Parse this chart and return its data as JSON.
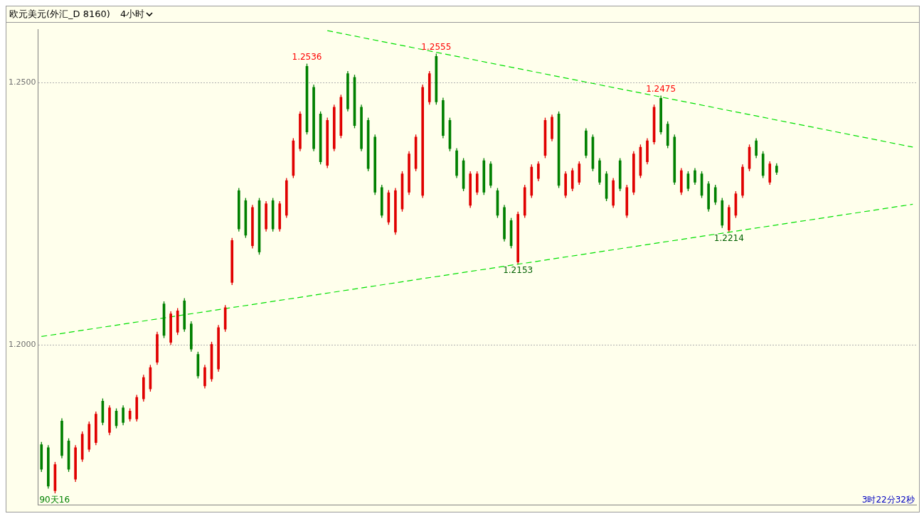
{
  "chart_data": {
    "type": "candlestick",
    "title": "欧元美元(外汇_D 8160)",
    "subtitle": "4小时",
    "categories": [
      null,
      null,
      null,
      null,
      null,
      null,
      null,
      null,
      null,
      null,
      null,
      null,
      null,
      null,
      null,
      null,
      null,
      null,
      null,
      null,
      null,
      null,
      null,
      null,
      null,
      null,
      null,
      null,
      null,
      null,
      null,
      null,
      null,
      null,
      null,
      null,
      null,
      null,
      null,
      null,
      null,
      null,
      null,
      null,
      null,
      null,
      null,
      null,
      null,
      null,
      null,
      null,
      null,
      null,
      null,
      null,
      null,
      null,
      null,
      null,
      null,
      null,
      null,
      null,
      null,
      null,
      null,
      null,
      null,
      null,
      null,
      null,
      null,
      null,
      null,
      null,
      null,
      null,
      null,
      null,
      null,
      null,
      null,
      null,
      null,
      null,
      null,
      null,
      null,
      null,
      null,
      null,
      null,
      null,
      null,
      null,
      null,
      null,
      null,
      null,
      null,
      null,
      null,
      null,
      null,
      null,
      null,
      null,
      null,
      null,
      null,
      null,
      null,
      null,
      null,
      null,
      null,
      null,
      null,
      null,
      null,
      null,
      null,
      null,
      null,
      null,
      null,
      null,
      null
    ],
    "ohlc": [
      [
        1.181,
        1.1815,
        1.1758,
        1.1763
      ],
      [
        1.1804,
        1.1809,
        1.1726,
        1.1731
      ],
      [
        1.1722,
        1.1777,
        1.1717,
        1.1772
      ],
      [
        1.1855,
        1.186,
        1.1784,
        1.1789
      ],
      [
        1.1817,
        1.1822,
        1.1758,
        1.1763
      ],
      [
        1.1744,
        1.1809,
        1.1739,
        1.1804
      ],
      [
        1.1782,
        1.1835,
        1.1777,
        1.183
      ],
      [
        1.1801,
        1.1854,
        1.1796,
        1.1849
      ],
      [
        1.1814,
        1.1873,
        1.1809,
        1.1868
      ],
      [
        1.1893,
        1.1898,
        1.1847,
        1.1852
      ],
      [
        1.1833,
        1.1885,
        1.1828,
        1.188
      ],
      [
        1.1874,
        1.1879,
        1.1841,
        1.1846
      ],
      [
        1.188,
        1.1885,
        1.1847,
        1.1852
      ],
      [
        1.1859,
        1.1879,
        1.1854,
        1.1874
      ],
      [
        1.1859,
        1.1905,
        1.1854,
        1.19
      ],
      [
        1.1897,
        1.1943,
        1.1892,
        1.1938
      ],
      [
        1.1916,
        1.1962,
        1.1911,
        1.1957
      ],
      [
        1.1967,
        1.2025,
        1.1962,
        1.202
      ],
      [
        1.2078,
        1.2083,
        1.2013,
        1.2018
      ],
      [
        1.2005,
        1.2064,
        1.2,
        1.2059
      ],
      [
        1.2024,
        1.207,
        1.2019,
        1.2065
      ],
      [
        1.2084,
        1.2089,
        1.2025,
        1.203
      ],
      [
        1.204,
        1.2045,
        1.1987,
        1.1992
      ],
      [
        1.1982,
        1.1987,
        1.1936,
        1.1941
      ],
      [
        1.1922,
        1.1962,
        1.1917,
        1.1957
      ],
      [
        1.1935,
        1.2006,
        1.193,
        1.2001
      ],
      [
        1.1954,
        1.2038,
        1.1949,
        1.2033
      ],
      [
        1.203,
        1.2076,
        1.2025,
        1.2071
      ],
      [
        1.2119,
        1.2204,
        1.2114,
        1.2199
      ],
      [
        1.2294,
        1.2299,
        1.2216,
        1.2221
      ],
      [
        1.2275,
        1.228,
        1.2204,
        1.2209
      ],
      [
        1.2189,
        1.2267,
        1.2184,
        1.2262
      ],
      [
        1.2275,
        1.228,
        1.2172,
        1.2177
      ],
      [
        1.2221,
        1.2274,
        1.2216,
        1.2269
      ],
      [
        1.2275,
        1.228,
        1.2216,
        1.2221
      ],
      [
        1.2221,
        1.2274,
        1.2216,
        1.2269
      ],
      [
        1.2247,
        1.2318,
        1.2242,
        1.2313
      ],
      [
        1.2323,
        1.2394,
        1.2318,
        1.2389
      ],
      [
        1.2374,
        1.2445,
        1.2369,
        1.244
      ],
      [
        1.2531,
        1.2536,
        1.2401,
        1.2406
      ],
      [
        1.2491,
        1.2496,
        1.2369,
        1.2374
      ],
      [
        1.244,
        1.2445,
        1.2344,
        1.2349
      ],
      [
        1.2342,
        1.2433,
        1.2337,
        1.2428
      ],
      [
        1.2374,
        1.2458,
        1.2369,
        1.2453
      ],
      [
        1.2399,
        1.2477,
        1.2394,
        1.2472
      ],
      [
        1.2517,
        1.2522,
        1.2445,
        1.245
      ],
      [
        1.251,
        1.2515,
        1.2413,
        1.2418
      ],
      [
        1.2453,
        1.2458,
        1.2369,
        1.2374
      ],
      [
        1.2428,
        1.2433,
        1.2331,
        1.2336
      ],
      [
        1.2396,
        1.2401,
        1.2286,
        1.2291
      ],
      [
        1.23,
        1.2305,
        1.2242,
        1.2247
      ],
      [
        1.2234,
        1.2295,
        1.2229,
        1.229
      ],
      [
        1.2215,
        1.2299,
        1.221,
        1.2294
      ],
      [
        1.2259,
        1.2331,
        1.2254,
        1.2326
      ],
      [
        1.2291,
        1.2369,
        1.2286,
        1.2364
      ],
      [
        1.2336,
        1.2401,
        1.2331,
        1.2396
      ],
      [
        1.2285,
        1.2496,
        1.228,
        1.2491
      ],
      [
        1.2463,
        1.2522,
        1.2458,
        1.2517
      ],
      [
        1.255,
        1.2555,
        1.2458,
        1.2463
      ],
      [
        1.2466,
        1.2471,
        1.2394,
        1.2399
      ],
      [
        1.2428,
        1.2433,
        1.2369,
        1.2374
      ],
      [
        1.237,
        1.2375,
        1.2318,
        1.2323
      ],
      [
        1.2351,
        1.2356,
        1.2293,
        1.2298
      ],
      [
        1.2266,
        1.2331,
        1.2261,
        1.2326
      ],
      [
        1.2291,
        1.2331,
        1.2286,
        1.2326
      ],
      [
        1.2351,
        1.2356,
        1.2286,
        1.2291
      ],
      [
        1.2345,
        1.235,
        1.2299,
        1.2304
      ],
      [
        1.2294,
        1.2299,
        1.2242,
        1.2247
      ],
      [
        1.2262,
        1.2267,
        1.2197,
        1.2202
      ],
      [
        1.2237,
        1.2242,
        1.2184,
        1.2189
      ],
      [
        1.2158,
        1.2254,
        1.2153,
        1.2249
      ],
      [
        1.2247,
        1.2305,
        1.2242,
        1.23
      ],
      [
        1.2285,
        1.2344,
        1.228,
        1.2339
      ],
      [
        1.2317,
        1.235,
        1.2312,
        1.2345
      ],
      [
        1.2361,
        1.2433,
        1.2356,
        1.2428
      ],
      [
        1.2393,
        1.2439,
        1.2388,
        1.2434
      ],
      [
        1.244,
        1.2445,
        1.2299,
        1.2304
      ],
      [
        1.2285,
        1.2331,
        1.228,
        1.2326
      ],
      [
        1.2298,
        1.2337,
        1.2293,
        1.2332
      ],
      [
        1.231,
        1.235,
        1.2305,
        1.2345
      ],
      [
        1.2408,
        1.2413,
        1.2356,
        1.2361
      ],
      [
        1.2396,
        1.2401,
        1.2331,
        1.2336
      ],
      [
        1.2351,
        1.2356,
        1.2305,
        1.231
      ],
      [
        1.2326,
        1.2331,
        1.2274,
        1.2279
      ],
      [
        1.2266,
        1.2318,
        1.2261,
        1.2313
      ],
      [
        1.2351,
        1.2356,
        1.2293,
        1.2298
      ],
      [
        1.2247,
        1.2305,
        1.2242,
        1.23
      ],
      [
        1.2291,
        1.2369,
        1.2286,
        1.2364
      ],
      [
        1.2323,
        1.2382,
        1.2318,
        1.2377
      ],
      [
        1.2349,
        1.2394,
        1.2344,
        1.2389
      ],
      [
        1.2387,
        1.2458,
        1.2382,
        1.2453
      ],
      [
        1.247,
        1.2475,
        1.2401,
        1.2406
      ],
      [
        1.2421,
        1.2426,
        1.2375,
        1.238
      ],
      [
        1.2396,
        1.2401,
        1.2305,
        1.231
      ],
      [
        1.2291,
        1.2337,
        1.2286,
        1.2332
      ],
      [
        1.2326,
        1.2331,
        1.2293,
        1.2298
      ],
      [
        1.2332,
        1.2337,
        1.2305,
        1.231
      ],
      [
        1.2326,
        1.2331,
        1.228,
        1.2285
      ],
      [
        1.2307,
        1.2312,
        1.2254,
        1.2259
      ],
      [
        1.23,
        1.2305,
        1.2267,
        1.2272
      ],
      [
        1.2275,
        1.228,
        1.2223,
        1.2228
      ],
      [
        1.2219,
        1.2267,
        1.2214,
        1.2262
      ],
      [
        1.2247,
        1.2293,
        1.2242,
        1.2288
      ],
      [
        1.2285,
        1.2344,
        1.228,
        1.2339
      ],
      [
        1.2336,
        1.2382,
        1.2331,
        1.2377
      ],
      [
        1.2389,
        1.2394,
        1.2356,
        1.2361
      ],
      [
        1.2364,
        1.2369,
        1.2318,
        1.2323
      ],
      [
        1.231,
        1.235,
        1.2305,
        1.2345
      ],
      [
        1.2341,
        1.2346,
        1.2324,
        1.2329
      ],
      null,
      null,
      null,
      null,
      null,
      null,
      null,
      null,
      null,
      null,
      null,
      null,
      null,
      null,
      null,
      null,
      null,
      null,
      null,
      null
    ],
    "colors": [
      "#008000",
      "#008000",
      "#e00000",
      "#008000",
      "#008000",
      "#e00000",
      "#e00000",
      "#e00000",
      "#e00000",
      "#008000",
      "#e00000",
      "#008000",
      "#008000",
      "#e00000",
      "#e00000",
      "#e00000",
      "#e00000",
      "#e00000",
      "#008000",
      "#e00000",
      "#e00000",
      "#008000",
      "#008000",
      "#008000",
      "#e00000",
      "#e00000",
      "#e00000",
      "#e00000",
      "#e00000",
      "#008000",
      "#008000",
      "#e00000",
      "#008000",
      "#e00000",
      "#008000",
      "#e00000",
      "#e00000",
      "#e00000",
      "#e00000",
      "#008000",
      "#008000",
      "#008000",
      "#e00000",
      "#e00000",
      "#e00000",
      "#008000",
      "#008000",
      "#008000",
      "#008000",
      "#008000",
      "#008000",
      "#e00000",
      "#e00000",
      "#e00000",
      "#e00000",
      "#e00000",
      "#e00000",
      "#e00000",
      "#008000",
      "#008000",
      "#008000",
      "#008000",
      "#008000",
      "#e00000",
      "#e00000",
      "#008000",
      "#008000",
      "#008000",
      "#008000",
      "#008000",
      "#e00000",
      "#e00000",
      "#e00000",
      "#e00000",
      "#e00000",
      "#e00000",
      "#008000",
      "#e00000",
      "#e00000",
      "#e00000",
      "#008000",
      "#008000",
      "#008000",
      "#008000",
      "#e00000",
      "#008000",
      "#e00000",
      "#e00000",
      "#e00000",
      "#e00000",
      "#e00000",
      "#008000",
      "#008000",
      "#008000",
      "#e00000",
      "#008000",
      "#008000",
      "#008000",
      "#008000",
      "#008000",
      "#008000",
      "#e00000",
      "#e00000",
      "#e00000",
      "#e00000",
      "#008000",
      "#008000",
      "#e00000",
      "#008000",
      null,
      null,
      null,
      null,
      null,
      null,
      null,
      null,
      null,
      null,
      null,
      null,
      null,
      null,
      null,
      null,
      null,
      null,
      null,
      null
    ],
    "series": [
      {
        "type": "line",
        "color": "#00e000",
        "line_style": "dashed",
        "values": [
          null,
          null,
          null,
          null,
          null,
          null,
          null,
          null,
          null,
          null,
          null,
          null,
          null,
          null,
          null,
          null,
          null,
          null,
          null,
          null,
          null,
          null,
          null,
          null,
          null,
          null,
          null,
          null,
          null,
          null,
          null,
          null,
          null,
          null,
          null,
          null,
          null,
          null,
          null,
          null,
          null,
          null,
          1.2599,
          null,
          null,
          null,
          null,
          null,
          null,
          null,
          null,
          null,
          null,
          null,
          null,
          null,
          null,
          null,
          null,
          null,
          null,
          null,
          null,
          null,
          null,
          null,
          null,
          null,
          null,
          null,
          null,
          null,
          null,
          null,
          null,
          null,
          null,
          null,
          null,
          null,
          null,
          null,
          null,
          null,
          null,
          null,
          null,
          null,
          null,
          null,
          null,
          null,
          null,
          null,
          null,
          null,
          null,
          null,
          null,
          null,
          null,
          null,
          null,
          null,
          null,
          null,
          null,
          null,
          null,
          null,
          null,
          null,
          null,
          null,
          null,
          null,
          null,
          null,
          null,
          null,
          null,
          null,
          null,
          null,
          null,
          null,
          null,
          null,
          1.2377
        ]
      },
      {
        "type": "line",
        "color": "#00e000",
        "line_style": "dashed",
        "values": [
          1.2016,
          null,
          null,
          null,
          null,
          null,
          null,
          null,
          null,
          null,
          null,
          null,
          null,
          null,
          null,
          null,
          null,
          null,
          null,
          null,
          null,
          null,
          null,
          null,
          null,
          null,
          null,
          null,
          null,
          null,
          null,
          null,
          null,
          null,
          null,
          null,
          null,
          null,
          null,
          null,
          null,
          null,
          null,
          null,
          null,
          null,
          null,
          null,
          null,
          null,
          null,
          null,
          null,
          null,
          null,
          null,
          null,
          null,
          null,
          null,
          null,
          null,
          null,
          null,
          null,
          null,
          null,
          null,
          null,
          null,
          null,
          null,
          null,
          null,
          null,
          null,
          null,
          null,
          null,
          null,
          null,
          null,
          null,
          null,
          null,
          null,
          null,
          null,
          null,
          null,
          null,
          null,
          null,
          null,
          null,
          null,
          null,
          null,
          null,
          null,
          null,
          null,
          null,
          null,
          null,
          null,
          null,
          null,
          null,
          null,
          null,
          null,
          null,
          null,
          null,
          null,
          null,
          null,
          null,
          null,
          null,
          null,
          null,
          null,
          null,
          null,
          null,
          null,
          1.2268
        ]
      }
    ],
    "annotations": [
      {
        "text": "1.2536",
        "y": 1.2536
      },
      {
        "text": "1.2555",
        "y": 1.2555
      },
      {
        "text": "1.2475",
        "y": 1.2475
      },
      {
        "text": "1.2153",
        "y": 1.2153
      },
      {
        "text": "1.2214",
        "y": 1.2214
      },
      "90天16",
      "3时22分32秒"
    ],
    "ylim": [
      1.1695,
      1.2601
    ],
    "yticks": [
      {
        "value": 1.25,
        "label": "1.2500"
      },
      {
        "value": 1.2,
        "label": "1.2000"
      }
    ],
    "grid": "y",
    "tick_labels": "y"
  }
}
